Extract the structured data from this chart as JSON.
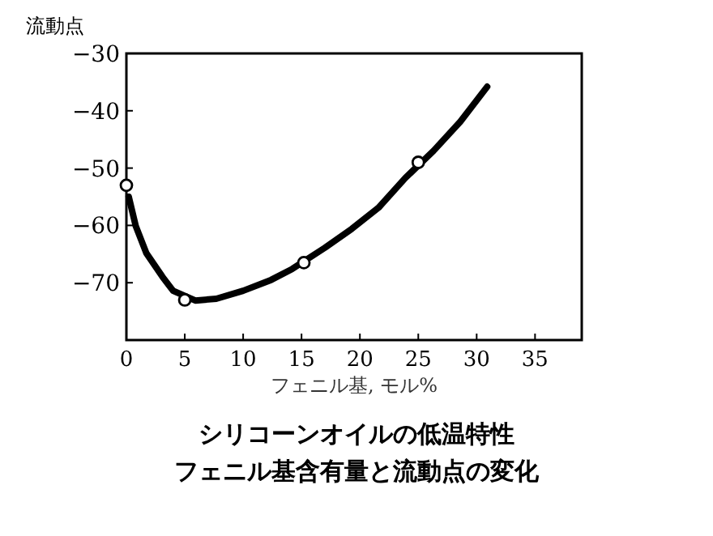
{
  "chart_data": {
    "type": "line",
    "title": "シリコーンオイルの低温特性",
    "subtitle": "フェニル基含有量と流動点の変化",
    "xlabel": "フェニル基, モル%",
    "ylabel": "流動点",
    "xlim": [
      0,
      39
    ],
    "xticks": [
      0,
      5,
      10,
      15,
      20,
      25,
      30,
      35
    ],
    "ylim": [
      -80,
      -30
    ],
    "yticks": [
      -30,
      -40,
      -50,
      -60,
      -70
    ],
    "grid": false,
    "series": [
      {
        "color": "#000000",
        "marker": "none",
        "x": [
          0.2,
          0.8,
          1.7,
          3.1,
          4,
          5.9,
          7.7,
          10,
          12.4,
          14.2,
          17,
          19.3,
          21.6,
          23.9,
          26.3,
          28.6,
          30.9
        ],
        "values": [
          -55,
          -60.1,
          -64.8,
          -69,
          -71.4,
          -73.1,
          -72.8,
          -71.4,
          -69.5,
          -67.6,
          -63.9,
          -60.6,
          -56.9,
          -51.7,
          -47,
          -41.9,
          -35.8
        ]
      },
      {
        "type": "scatter",
        "color": "#000000",
        "marker": "circle",
        "x": [
          0,
          5,
          15.2,
          25
        ],
        "values": [
          -53,
          -73,
          -66.5,
          -49
        ]
      }
    ]
  }
}
